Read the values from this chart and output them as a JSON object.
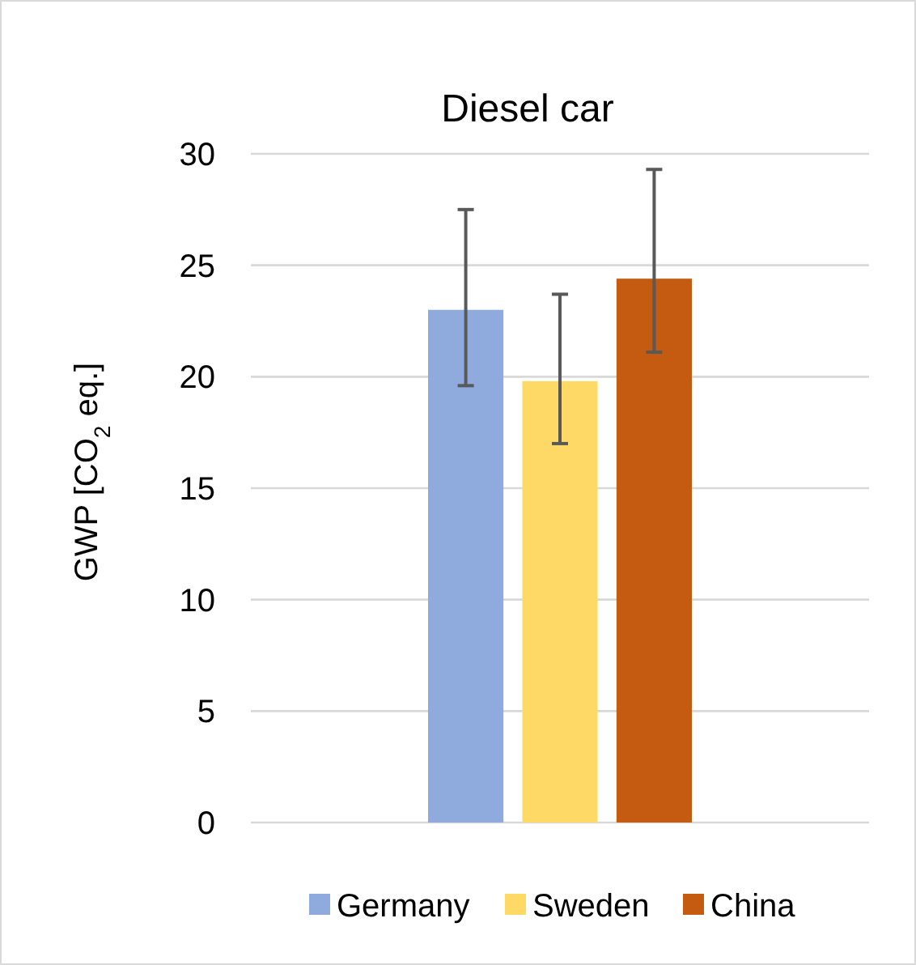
{
  "chart_data": {
    "type": "bar",
    "title": "Diesel car",
    "ylabel": "GWP [CO$_{2}$ eq.]",
    "categories": [
      null
    ],
    "series": [
      {
        "name": "Germany",
        "color": "#8faadc",
        "values": [
          23.0
        ],
        "errors": [
          [
            19.6,
            27.5
          ]
        ]
      },
      {
        "name": "Sweden",
        "color": "#ffd966",
        "values": [
          19.8
        ],
        "errors": [
          [
            17.0,
            23.7
          ]
        ]
      },
      {
        "name": "China",
        "color": "#c55a11",
        "values": [
          24.4
        ],
        "errors": [
          [
            21.1,
            29.3
          ]
        ]
      }
    ],
    "ylim": [
      0,
      30
    ],
    "yticks": [
      0,
      5,
      10,
      15,
      20,
      25,
      30
    ],
    "grid": "y",
    "legend": "bottom"
  }
}
